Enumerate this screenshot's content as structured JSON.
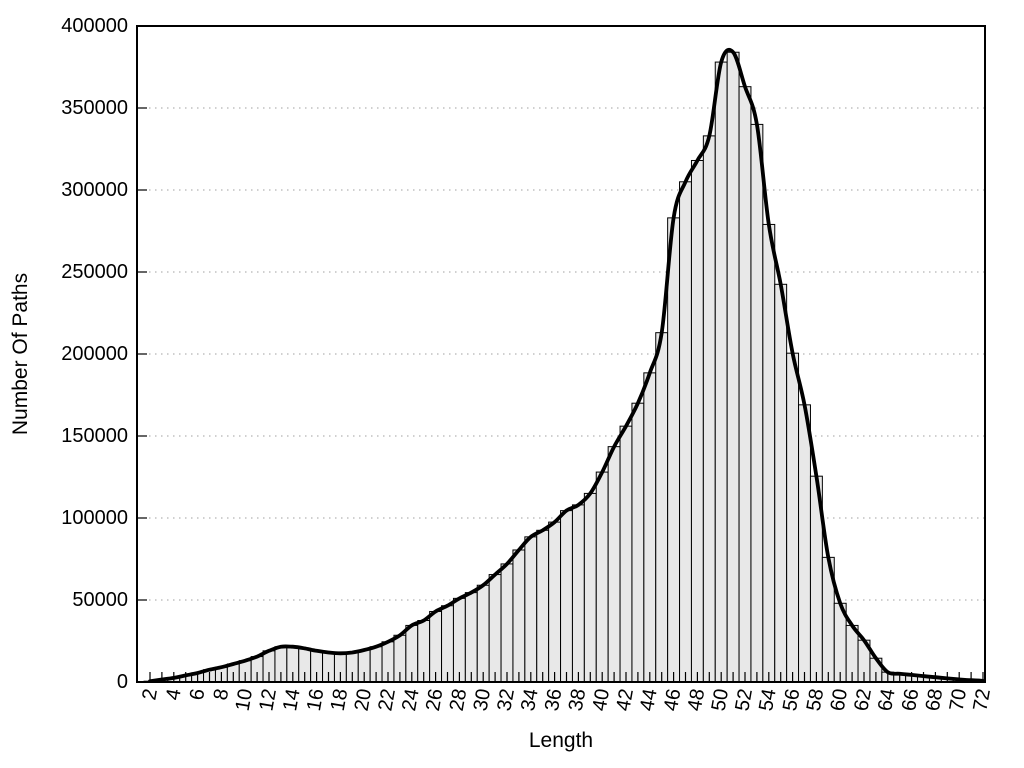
{
  "chart_data": {
    "type": "bar",
    "subtype": "histogram-with-smooth-curve",
    "title": "",
    "xlabel": "Length",
    "ylabel": "Number Of Paths",
    "xlim": [
      0.9,
      72.2
    ],
    "ylim": [
      0,
      400000
    ],
    "grid": "horizontal-dotted",
    "legend": "none",
    "bar_fill_color": "#e8e8e8",
    "bar_stroke_color": "#000000",
    "curve_color": "#000000",
    "grid_color": "#a0a0a0",
    "x": [
      2,
      3,
      4,
      5,
      6,
      7,
      8,
      9,
      10,
      11,
      12,
      13,
      14,
      15,
      16,
      17,
      18,
      19,
      20,
      21,
      22,
      23,
      24,
      25,
      26,
      27,
      28,
      29,
      30,
      31,
      32,
      33,
      34,
      35,
      36,
      37,
      38,
      39,
      40,
      41,
      42,
      43,
      44,
      45,
      46,
      47,
      48,
      49,
      50,
      51,
      52,
      53,
      54,
      55,
      56,
      57,
      58,
      59,
      60,
      61,
      62,
      63,
      64,
      65,
      66,
      67,
      68,
      69,
      70,
      71,
      72
    ],
    "values": [
      500,
      1500,
      2500,
      4000,
      5500,
      7500,
      9000,
      11000,
      13000,
      15500,
      19000,
      21500,
      21500,
      20500,
      19000,
      18000,
      17500,
      18000,
      19500,
      21500,
      24500,
      28500,
      34500,
      37500,
      43000,
      46500,
      51000,
      54500,
      59000,
      65500,
      72000,
      80500,
      88500,
      92500,
      97500,
      104500,
      108000,
      115000,
      128000,
      143500,
      156000,
      170000,
      188500,
      213000,
      283000,
      305000,
      318000,
      333000,
      378000,
      384000,
      363000,
      340000,
      279000,
      242500,
      200500,
      169000,
      125500,
      76000,
      48000,
      34500,
      25500,
      14500,
      6000,
      5000,
      4300,
      3600,
      2900,
      2200,
      1600,
      1100,
      700
    ],
    "xtick_labels": [
      "2",
      "4",
      "6",
      "8",
      "10",
      "12",
      "14",
      "16",
      "18",
      "20",
      "22",
      "24",
      "26",
      "28",
      "30",
      "32",
      "34",
      "36",
      "38",
      "40",
      "42",
      "44",
      "46",
      "48",
      "50",
      "52",
      "54",
      "56",
      "58",
      "60",
      "62",
      "64",
      "66",
      "68",
      "70",
      "72"
    ],
    "xtick_values": [
      2,
      4,
      6,
      8,
      10,
      12,
      14,
      16,
      18,
      20,
      22,
      24,
      26,
      28,
      30,
      32,
      34,
      36,
      38,
      40,
      42,
      44,
      46,
      48,
      50,
      52,
      54,
      56,
      58,
      60,
      62,
      64,
      66,
      68,
      70,
      72
    ],
    "minor_xtick_every": 1,
    "ytick_labels": [
      "0",
      "50000",
      "100000",
      "150000",
      "200000",
      "250000",
      "300000",
      "350000",
      "400000"
    ],
    "ytick_values": [
      0,
      50000,
      100000,
      150000,
      200000,
      250000,
      300000,
      350000,
      400000
    ]
  }
}
